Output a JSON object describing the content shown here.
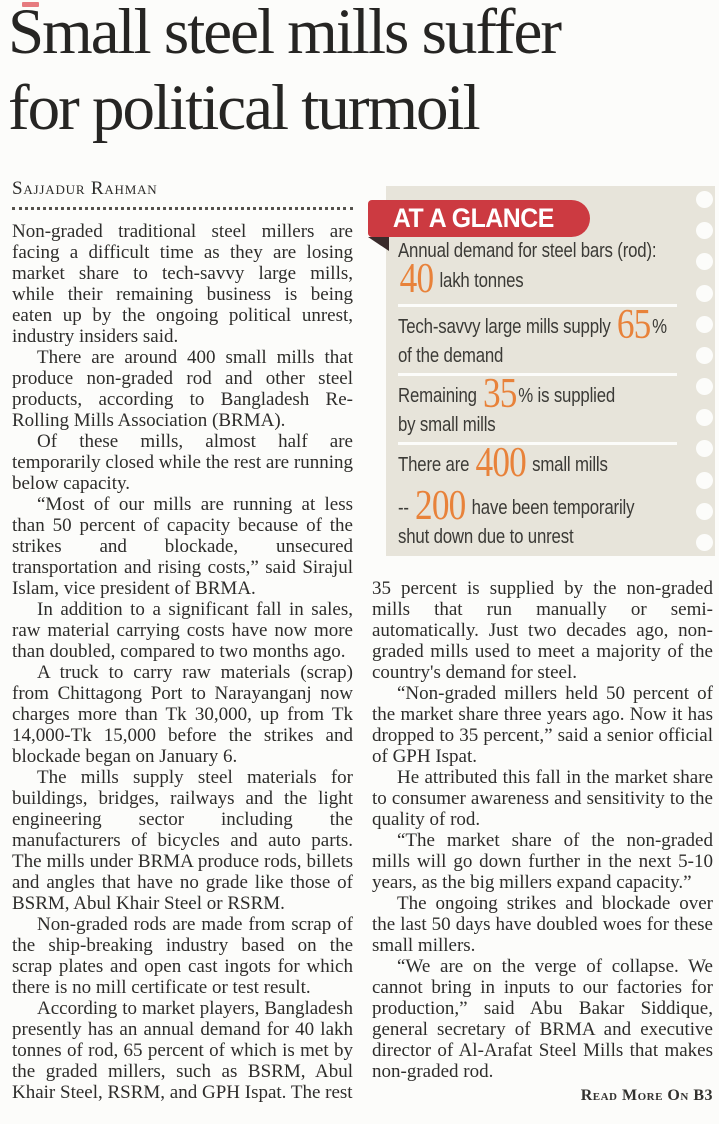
{
  "article": {
    "headline_line1": "Small steel mills suffer",
    "headline_line2": "for political turmoil",
    "byline": "Sajjadur Rahman",
    "read_more": "Read More On B3",
    "left_column": [
      "Non-graded traditional steel millers are facing a difficult time as they are losing market share to tech-savvy large mills, while their remaining business is being eaten up by the ongoing political unrest, industry insiders said.",
      "There are around 400 small mills that produce non-graded rod and other steel products, according to Bangladesh Re-Rolling Mills Association (BRMA).",
      "Of these mills, almost half are temporarily closed while the rest are running below capacity.",
      "“Most of our mills are running at less than 50 percent of capacity because of the strikes and blockade, unsecured transportation and rising costs,” said Sirajul Islam, vice president of BRMA.",
      "In addition to a significant fall in sales, raw material carrying costs have now more than doubled, compared to two months ago.",
      "A truck to carry raw materials (scrap) from Chittagong Port to Narayanganj now charges more than Tk 30,000, up from Tk 14,000-Tk 15,000 before the strikes and blockade began on January 6.",
      "The mills supply steel materials for buildings, bridges, railways and the light engineering sector including the manufacturers of bicycles and auto parts. The mills under BRMA produce rods, billets and angles that have no grade like those of BSRM, Abul Khair Steel or RSRM.",
      "Non-graded rods are made from scrap of the ship-breaking industry based on the scrap plates and open cast ingots for which there is no mill certificate or test result.",
      "According to market players, Bangladesh presently has an annual demand for 40 lakh tonnes of rod, 65 percent of which is met by the graded millers, such as BSRM, Abul Khair Steel, RSRM, and GPH Ispat. The rest"
    ],
    "right_column": [
      "35 percent is supplied by the non-graded mills that run manually or semi-automatically. Just two decades ago, non-graded mills used to meet a majority of the country's demand for steel.",
      "“Non-graded millers held 50 percent of the market share three years ago. Now it has dropped to 35 percent,” said a senior official of GPH Ispat.",
      "He attributed this fall in the market share to consumer awareness and sensitivity to the quality of rod.",
      "“The market share of the non-graded mills will go down further in the next 5-10 years, as the big millers expand capacity.”",
      "The ongoing strikes and blockade over the last 50 days have doubled woes for these small millers.",
      "“We are on the verge of collapse. We cannot bring in inputs to our factories for production,” said Abu Bakar Siddique, general secretary of BRMA and executive director of Al-Arafat Steel Mills that makes non-graded rod."
    ]
  },
  "glance": {
    "title": "AT A GLANCE",
    "rows": [
      {
        "label": "Annual demand for steel bars (rod):",
        "big": "40",
        "post": " lakh tonnes"
      },
      {
        "pre": "Tech-savvy large mills supply ",
        "big": "65",
        "post": "%",
        "line2": "of the demand"
      },
      {
        "pre": "Remaining ",
        "big": "35",
        "post": "% is supplied",
        "line2": "by small mills"
      },
      {
        "pre": "There are ",
        "big": "400",
        "post": " small mills"
      },
      {
        "pre": "-- ",
        "big": "200",
        "post": " have been temporarily",
        "line2": "shut down due to unrest"
      }
    ]
  },
  "colors": {
    "banner_red": "#cc3a41",
    "box_background": "#e7e4da",
    "stat_orange": "#e8823a",
    "body_text": "#2e2d2b",
    "page_background": "#fcfcfa"
  }
}
